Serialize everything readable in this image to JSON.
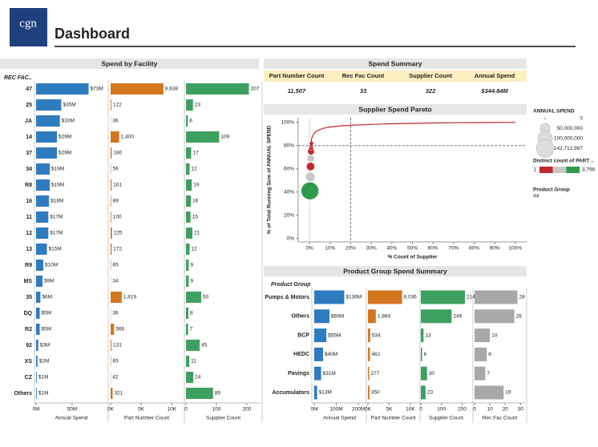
{
  "header": {
    "logo": "cgn",
    "title": "Dashboard"
  },
  "spend_summary": {
    "title": "Spend Summary",
    "columns": [
      "Part Number Count",
      "Rec Fac Count",
      "Supplier Count",
      "Annual Spend"
    ],
    "values": [
      "11,507",
      "33",
      "322",
      "$344.84M"
    ]
  },
  "chart_data": [
    {
      "type": "bar",
      "title": "Spend by Facility",
      "category_title": "REC FAC..",
      "categories": [
        "47",
        "25",
        "JA",
        "14",
        "37",
        "34",
        "R8",
        "16",
        "11",
        "12",
        "13",
        "R9",
        "MS",
        "35",
        "DQ",
        "R2",
        "92",
        "XS",
        "CZ",
        "Others"
      ],
      "series": [
        {
          "name": "Annual Spend",
          "color": "#2e7bbf",
          "values": [
            73,
            35,
            33,
            29,
            29,
            19,
            19,
            18,
            17,
            17,
            15,
            10,
            9,
            6,
            5,
            5,
            3,
            2,
            1,
            1
          ],
          "value_labels": [
            "$73M",
            "$35M",
            "$33M",
            "$29M",
            "$29M",
            "$19M",
            "$19M",
            "$18M",
            "$17M",
            "$17M",
            "$15M",
            "$10M",
            "$9M",
            "$6M",
            "$5M",
            "$5M",
            "$3M",
            "$2M",
            "$1M",
            "$1M"
          ],
          "xlim": [
            0,
            98
          ],
          "xticks": [
            {
              "value": 0,
              "label": "0M"
            },
            {
              "value": 50,
              "label": "50M"
            }
          ]
        },
        {
          "name": "Part Number Count",
          "color": "#d4761e",
          "values": [
            8638,
            122,
            36,
            1400,
            180,
            59,
            161,
            89,
            100,
            225,
            172,
            65,
            34,
            1819,
            36,
            566,
            131,
            65,
            42,
            321
          ],
          "value_labels": [
            "8,638",
            "122",
            "36",
            "1,400",
            "180",
            "59",
            "161",
            "89",
            "100",
            "225",
            "172",
            "65",
            "34",
            "1,819",
            "36",
            "566",
            "131",
            "65",
            "42",
            "321"
          ],
          "xlim": [
            0,
            11800
          ],
          "xticks": [
            {
              "value": 0,
              "label": "0K"
            },
            {
              "value": 5000,
              "label": "5K"
            },
            {
              "value": 10000,
              "label": "10K"
            }
          ]
        },
        {
          "name": "Supplier Count",
          "color": "#3ea060",
          "values": [
            207,
            23,
            6,
            109,
            17,
            12,
            19,
            16,
            15,
            21,
            12,
            9,
            9,
            50,
            8,
            7,
            45,
            11,
            24,
            89
          ],
          "xlim": [
            0,
            245
          ],
          "xticks": [
            0,
            100,
            200
          ]
        }
      ]
    },
    {
      "type": "scatter",
      "title": "Supplier Spend Pareto",
      "x_label": "% Count of Supplier",
      "y_label": "% of Total Running Sum of ANNUAL SPEND",
      "xlim": [
        -5.5,
        105.5
      ],
      "ylim": [
        -3,
        104
      ],
      "xticks": [
        {
          "value": 0,
          "label": "0%"
        },
        {
          "value": 10,
          "label": "10%"
        },
        {
          "value": 20,
          "label": "20%"
        },
        {
          "value": 30,
          "label": "30%"
        },
        {
          "value": 40,
          "label": "40%"
        },
        {
          "value": 50,
          "label": "50%"
        },
        {
          "value": 60,
          "label": "60%"
        },
        {
          "value": 70,
          "label": "70%"
        },
        {
          "value": 80,
          "label": "80%"
        },
        {
          "value": 90,
          "label": "90%"
        },
        {
          "value": 100,
          "label": "100%"
        }
      ],
      "yticks": [
        {
          "value": 0,
          "label": "0%"
        },
        {
          "value": 20,
          "label": "20%"
        },
        {
          "value": 40,
          "label": "40%"
        },
        {
          "value": 60,
          "label": "60%"
        },
        {
          "value": 80,
          "label": "80%"
        },
        {
          "value": 100,
          "label": "100%"
        }
      ],
      "reference_x": 20,
      "reference_y": 80,
      "curve": {
        "color": "#c0282d",
        "x": [
          0.5,
          1,
          2,
          3,
          4,
          6,
          8,
          10,
          15,
          20,
          30,
          40,
          50,
          60,
          70,
          80,
          90,
          100
        ],
        "y": [
          80,
          86,
          90,
          92,
          93,
          94.5,
          95.5,
          96,
          97,
          97.5,
          98.3,
          98.8,
          99.2,
          99.5,
          99.7,
          99.8,
          99.9,
          100
        ]
      },
      "points": {
        "x": [
          0.2,
          0.4,
          0.5,
          0.6,
          0.7,
          0.8,
          0.9,
          1.0
        ],
        "y": [
          41,
          53,
          62,
          69,
          75,
          78,
          80,
          82
        ],
        "size": [
          141000000,
          41000000,
          31000000,
          24000000,
          21000000,
          10000000,
          7000000,
          7000000
        ],
        "colors": [
          "#2e9a4a",
          "#c8c8c8",
          "#c0282d",
          "#c8c8c8",
          "#c0282d",
          "#c0282d",
          "#c0282d",
          "#c0282d"
        ]
      },
      "size_legend": {
        "title": "ANNUAL SPEND",
        "entries": [
          0,
          {
            "value": 50000000,
            "label": "50,000,000"
          },
          {
            "value": 100000000,
            "label": "100,000,000"
          },
          {
            "value": 142712987,
            "label": "142,712,987"
          }
        ]
      },
      "color_legend": {
        "title": "Distinct count of PART ..",
        "min": 1,
        "max": {
          "value": 3798,
          "label": "3,798"
        },
        "colors": [
          "#c0282d",
          "#c8c8c8",
          "#2e9a4a"
        ]
      },
      "filter": {
        "title": "Product Group",
        "value": "All"
      }
    },
    {
      "type": "bar",
      "title": "Product Group Spend Summary",
      "category_title": "Product Group",
      "categories": [
        "Pumps & Motors",
        "Others",
        "BCP",
        "HEDC",
        "Pavings",
        "Accumulators"
      ],
      "series": [
        {
          "name": "Annual Spend",
          "color": "#2e7bbf",
          "values": [
            136,
            69,
            55,
            40,
            31,
            13
          ],
          "value_labels": [
            "$136M",
            "$69M",
            "$55M",
            "$40M",
            "$31M",
            "$13M"
          ],
          "xlim": [
            0,
            229
          ],
          "xticks": [
            {
              "value": 0,
              "label": "0M"
            },
            {
              "value": 100,
              "label": "100M"
            },
            {
              "value": 200,
              "label": "200M"
            }
          ]
        },
        {
          "name": "Part Number Count",
          "color": "#d4761e",
          "values": [
            8036,
            1864,
            534,
            462,
            277,
            350
          ],
          "value_labels": [
            "8,036",
            "1,864",
            "534",
            "462",
            "277",
            "350"
          ],
          "xlim": [
            0,
            11900
          ],
          "xticks": [
            {
              "value": 0,
              "label": "0K"
            },
            {
              "value": 5000,
              "label": "5K"
            },
            {
              "value": 10000,
              "label": "10K"
            }
          ]
        },
        {
          "name": "Supplier Count",
          "color": "#3ea060",
          "values": [
            214,
            149,
            13,
            6,
            30,
            23
          ],
          "xlim": [
            0,
            245
          ],
          "xticks": [
            0,
            100,
            200
          ]
        },
        {
          "name": "Rec Fac Count",
          "color": "#a8a8a8",
          "values": [
            28,
            26,
            10,
            8,
            7,
            19
          ],
          "xlim": [
            0,
            33
          ],
          "xticks": [
            0,
            10,
            20,
            30
          ]
        }
      ]
    }
  ]
}
